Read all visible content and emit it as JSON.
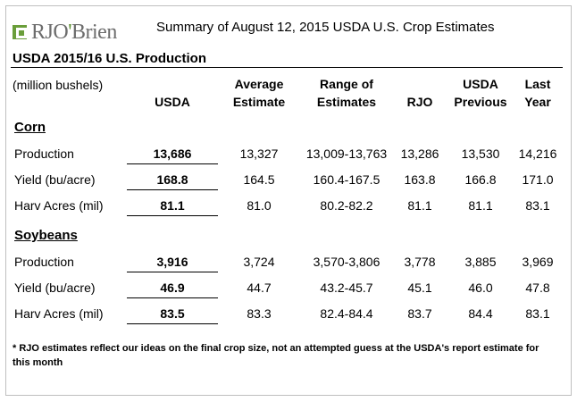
{
  "logo": {
    "brand_a": "RJO",
    "brand_b": "'",
    "brand_c": "Brien"
  },
  "title": "Summary of August 12, 2015 USDA U.S. Crop Estimates",
  "section_title": "USDA 2015/16 U.S. Production",
  "units": "(million bushels)",
  "headers": {
    "usda": "USDA",
    "avg_1": "Average",
    "avg_2": "Estimate",
    "range_1": "Range of",
    "range_2": "Estimates",
    "rjo": "RJO",
    "prev_1": "USDA",
    "prev_2": "Previous",
    "last_1": "Last",
    "last_2": "Year"
  },
  "corn": {
    "title": "Corn",
    "rows": [
      {
        "label": "Production",
        "usda": "13,686",
        "avg": "13,327",
        "range": "13,009-13,763",
        "rjo": "13,286",
        "prev": "13,530",
        "last": "14,216"
      },
      {
        "label": "Yield (bu/acre)",
        "usda": "168.8",
        "avg": "164.5",
        "range": "160.4-167.5",
        "rjo": "163.8",
        "prev": "166.8",
        "last": "171.0"
      },
      {
        "label": "Harv Acres (mil)",
        "usda": "81.1",
        "avg": "81.0",
        "range": "80.2-82.2",
        "rjo": "81.1",
        "prev": "81.1",
        "last": "83.1"
      }
    ]
  },
  "soybeans": {
    "title": "Soybeans",
    "rows": [
      {
        "label": "Production",
        "usda": "3,916",
        "avg": "3,724",
        "range": "3,570-3,806",
        "rjo": "3,778",
        "prev": "3,885",
        "last": "3,969"
      },
      {
        "label": "Yield (bu/acre)",
        "usda": "46.9",
        "avg": "44.7",
        "range": "43.2-45.7",
        "rjo": "45.1",
        "prev": "46.0",
        "last": "47.8"
      },
      {
        "label": "Harv Acres (mil)",
        "usda": "83.5",
        "avg": "83.3",
        "range": "82.4-84.4",
        "rjo": "83.7",
        "prev": "84.4",
        "last": "83.1"
      }
    ]
  },
  "footnote": "* RJO estimates reflect our ideas on the final crop size, not an attempted guess at the USDA's report estimate for this month"
}
